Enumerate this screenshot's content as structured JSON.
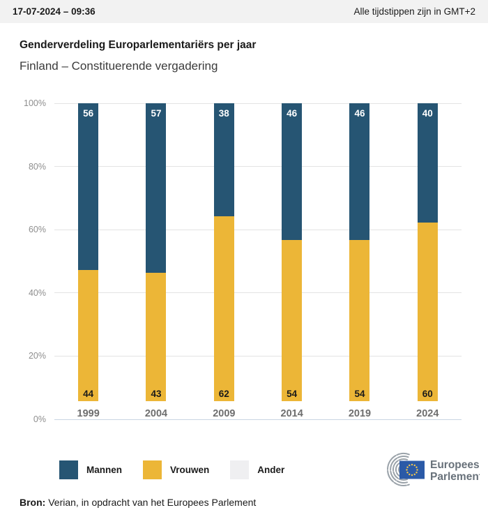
{
  "topbar": {
    "datetime": "17-07-2024 – 09:36",
    "timezone_note": "Alle tijdstippen zijn in GMT+2"
  },
  "header": {
    "title": "Genderverdeling Europarlementariërs per jaar",
    "subtitle": "Finland – Constituerende vergadering"
  },
  "chart_data": {
    "type": "bar",
    "stacked": true,
    "title": "Genderverdeling Europarlementariërs per jaar",
    "subtitle": "Finland – Constituerende vergadering",
    "categories": [
      "1999",
      "2004",
      "2009",
      "2014",
      "2019",
      "2024"
    ],
    "series": [
      {
        "name": "Mannen",
        "color": "#265573",
        "label_color": "#ffffff",
        "values": [
          56,
          57,
          38,
          46,
          46,
          40
        ]
      },
      {
        "name": "Vrouwen",
        "color": "#ECB637",
        "label_color": "#1a1a1a",
        "values": [
          44,
          43,
          62,
          54,
          54,
          60
        ]
      }
    ],
    "ylim": [
      0,
      100
    ],
    "yticks": [
      "0%",
      "20%",
      "40%",
      "60%",
      "80%",
      "100%"
    ],
    "grid": true,
    "legend_position": "bottom",
    "xlabel": "",
    "ylabel": ""
  },
  "legend": {
    "items": [
      {
        "label": "Mannen",
        "color": "#265573"
      },
      {
        "label": "Vrouwen",
        "color": "#ECB637"
      },
      {
        "label": "Ander",
        "color": "#EFEFF1"
      }
    ]
  },
  "logo": {
    "line1": "Europees",
    "line2": "Parlement"
  },
  "footer": {
    "source_label": "Bron:",
    "source_text": "Verian, in opdracht van het Europees Parlement"
  },
  "colors": {
    "accent_blue": "#265573",
    "accent_yellow": "#ECB637",
    "other_gray": "#EFEFF1",
    "topbar_bg": "#F2F2F2",
    "gridline": "#E3E3E3",
    "baseline": "#C9D4E2",
    "flag_blue": "#2B5AA7",
    "star_yellow": "#F5C84C"
  }
}
